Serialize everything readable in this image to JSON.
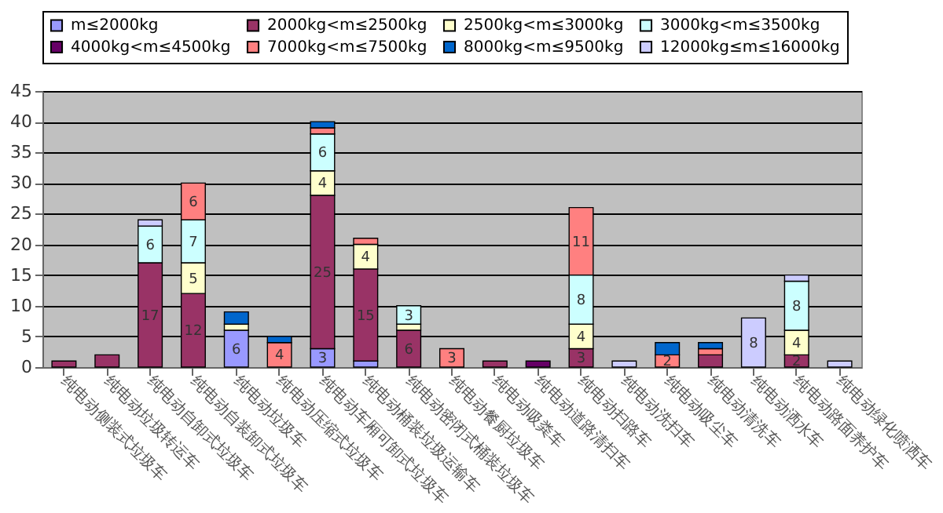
{
  "chart_data": {
    "type": "bar",
    "stacked": true,
    "legend": "top",
    "grid": "y",
    "ylim": [
      0,
      45
    ],
    "yticks": [
      0,
      5,
      10,
      15,
      20,
      25,
      30,
      35,
      40,
      45
    ],
    "categories": [
      "纯电动侧装式垃圾车",
      "纯电动垃圾转运车",
      "纯电动自卸式垃圾车",
      "纯电动自装卸式垃圾车",
      "纯电动垃圾车",
      "纯电动压缩式垃圾车",
      "纯电动车厢可卸式垃圾车",
      "纯电动桶装垃圾运输车",
      "纯电动密闭式桶装垃圾车",
      "纯电动餐厨垃圾车",
      "纯电动吸粪车",
      "纯电动道路清扫车",
      "纯电动扫路车",
      "纯电动洗扫车",
      "纯电动吸尘车",
      "纯电动清洗车",
      "纯电动洒水车",
      "纯电动路面养护车",
      "纯电动绿化喷洒车"
    ],
    "series": [
      {
        "name": "m≤2000kg",
        "color": "#9999ff",
        "values": [
          null,
          null,
          null,
          null,
          6,
          null,
          3,
          1,
          null,
          null,
          null,
          null,
          null,
          null,
          null,
          null,
          null,
          null,
          null
        ],
        "value_labels": [
          null,
          null,
          null,
          null,
          "6",
          null,
          "3",
          null,
          null,
          null,
          null,
          null,
          null,
          null,
          null,
          null,
          null,
          null,
          null
        ]
      },
      {
        "name": "2000kg<m≤2500kg",
        "color": "#993366",
        "values": [
          1,
          2,
          17,
          12,
          null,
          null,
          25,
          15,
          6,
          null,
          1,
          null,
          3,
          null,
          null,
          2,
          null,
          2,
          null
        ],
        "value_labels": [
          null,
          null,
          "17",
          "12",
          null,
          null,
          "25",
          "15",
          "6",
          null,
          null,
          null,
          "3",
          null,
          null,
          null,
          null,
          "2",
          null
        ]
      },
      {
        "name": "2500kg<m≤3000kg",
        "color": "#ffffcc",
        "values": [
          null,
          null,
          null,
          5,
          1,
          null,
          4,
          4,
          1,
          null,
          null,
          null,
          4,
          null,
          null,
          null,
          null,
          4,
          null
        ],
        "value_labels": [
          null,
          null,
          null,
          "5",
          null,
          null,
          "4",
          "4",
          null,
          null,
          null,
          null,
          "4",
          null,
          null,
          null,
          null,
          "4",
          null
        ]
      },
      {
        "name": "3000kg<m≤3500kg",
        "color": "#ccffff",
        "values": [
          null,
          null,
          6,
          7,
          null,
          null,
          6,
          null,
          3,
          null,
          null,
          null,
          8,
          null,
          null,
          null,
          null,
          8,
          null
        ],
        "value_labels": [
          null,
          null,
          "6",
          "7",
          null,
          null,
          "6",
          null,
          "3",
          null,
          null,
          null,
          "8",
          null,
          null,
          null,
          null,
          "8",
          null
        ]
      },
      {
        "name": "4000kg<m≤4500kg",
        "color": "#660066",
        "values": [
          null,
          null,
          null,
          null,
          null,
          null,
          null,
          null,
          null,
          null,
          null,
          1,
          null,
          null,
          null,
          null,
          null,
          null,
          null
        ]
      },
      {
        "name": "7000kg<m≤7500kg",
        "color": "#ff8080",
        "values": [
          null,
          null,
          null,
          6,
          null,
          4,
          1,
          1,
          null,
          3,
          null,
          null,
          11,
          null,
          2,
          1,
          null,
          null,
          null
        ],
        "value_labels": [
          null,
          null,
          null,
          "6",
          null,
          "4",
          null,
          null,
          null,
          "3",
          null,
          null,
          "11",
          null,
          "2",
          null,
          null,
          null,
          null
        ]
      },
      {
        "name": "8000kg<m≤9500kg",
        "color": "#0066cc",
        "values": [
          null,
          null,
          null,
          null,
          2,
          1,
          1,
          null,
          null,
          null,
          null,
          null,
          null,
          null,
          2,
          1,
          null,
          null,
          null
        ]
      },
      {
        "name": "12000kg≤m≤16000kg",
        "color": "#ccccff",
        "values": [
          null,
          null,
          1,
          null,
          null,
          null,
          null,
          null,
          null,
          null,
          null,
          null,
          null,
          1,
          null,
          null,
          8,
          1,
          1
        ],
        "value_labels": [
          null,
          null,
          null,
          null,
          null,
          null,
          null,
          null,
          null,
          null,
          null,
          null,
          null,
          null,
          null,
          null,
          "8",
          null,
          null
        ]
      }
    ]
  }
}
